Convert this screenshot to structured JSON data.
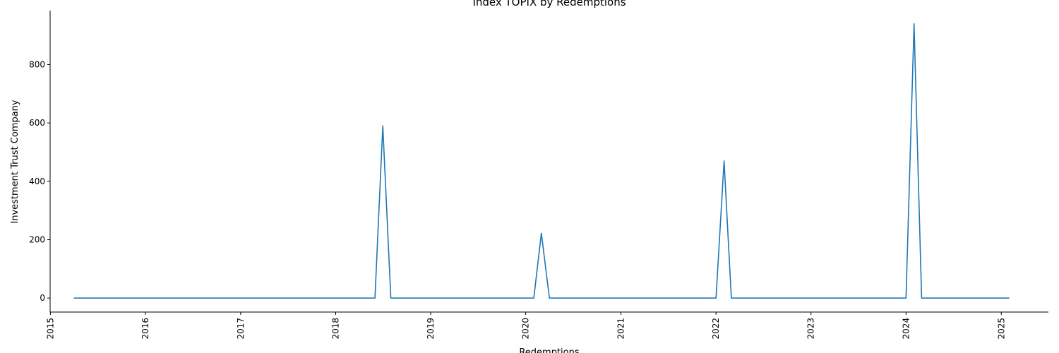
{
  "chart_data": {
    "type": "line",
    "title": "Index TOPIX by Redemptions",
    "xlabel": "Redemptions",
    "ylabel": "Investment Trust Company",
    "x_ticks": [
      "2015",
      "2016",
      "2017",
      "2018",
      "2019",
      "2020",
      "2021",
      "2022",
      "2023",
      "2024",
      "2025"
    ],
    "y_ticks": [
      0,
      200,
      400,
      600,
      800
    ],
    "xlim": [
      "2014-12-31",
      "2025-07-01"
    ],
    "ylim": [
      -48,
      985
    ],
    "grid": false,
    "legend": "none",
    "colors": {
      "line": "#1f77b4",
      "axis": "#000000"
    },
    "series": [
      {
        "points": [
          {
            "x": "2015-04-01",
            "y": 0
          },
          {
            "x": "2018-06-01",
            "y": 0
          },
          {
            "x": "2018-07-01",
            "y": 590
          },
          {
            "x": "2018-08-01",
            "y": 0
          },
          {
            "x": "2020-02-01",
            "y": 0
          },
          {
            "x": "2020-03-01",
            "y": 222
          },
          {
            "x": "2020-04-01",
            "y": 0
          },
          {
            "x": "2022-01-01",
            "y": 0
          },
          {
            "x": "2022-02-01",
            "y": 470
          },
          {
            "x": "2022-03-01",
            "y": 0
          },
          {
            "x": "2024-01-01",
            "y": 0
          },
          {
            "x": "2024-02-01",
            "y": 940
          },
          {
            "x": "2024-03-01",
            "y": 0
          },
          {
            "x": "2025-02-01",
            "y": 0
          }
        ]
      }
    ]
  }
}
